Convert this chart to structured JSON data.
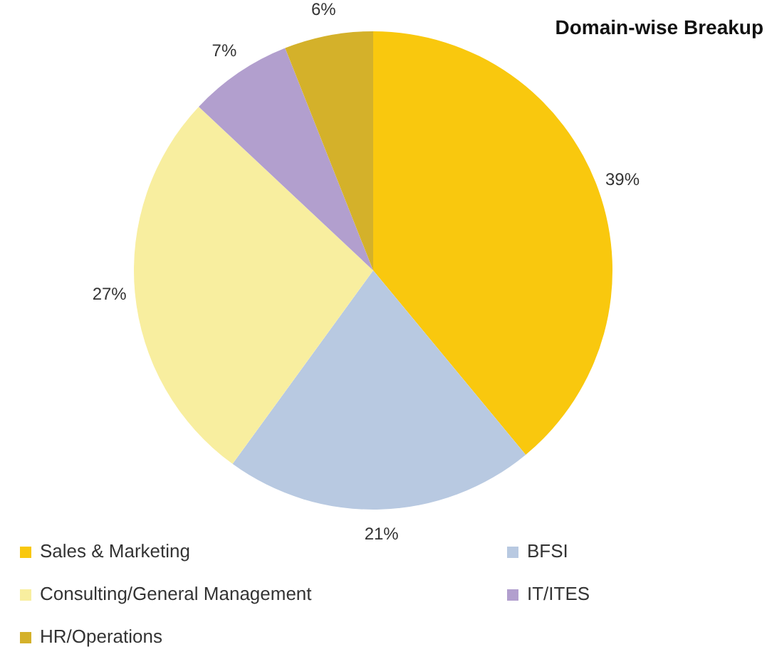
{
  "chart_data": {
    "type": "pie",
    "title": "Domain-wise Breakup",
    "categories": [
      "Sales & Marketing",
      "BFSI",
      "Consulting/General Management",
      "IT/ITES",
      "HR/Operations"
    ],
    "values": [
      39,
      21,
      27,
      7,
      6
    ],
    "colors": [
      "#f9c80e",
      "#b8c9e1",
      "#f8ee9f",
      "#b29fce",
      "#d4b12a"
    ],
    "value_labels": [
      "39%",
      "21%",
      "27%",
      "7%",
      "6%"
    ],
    "legend": "bottom"
  }
}
